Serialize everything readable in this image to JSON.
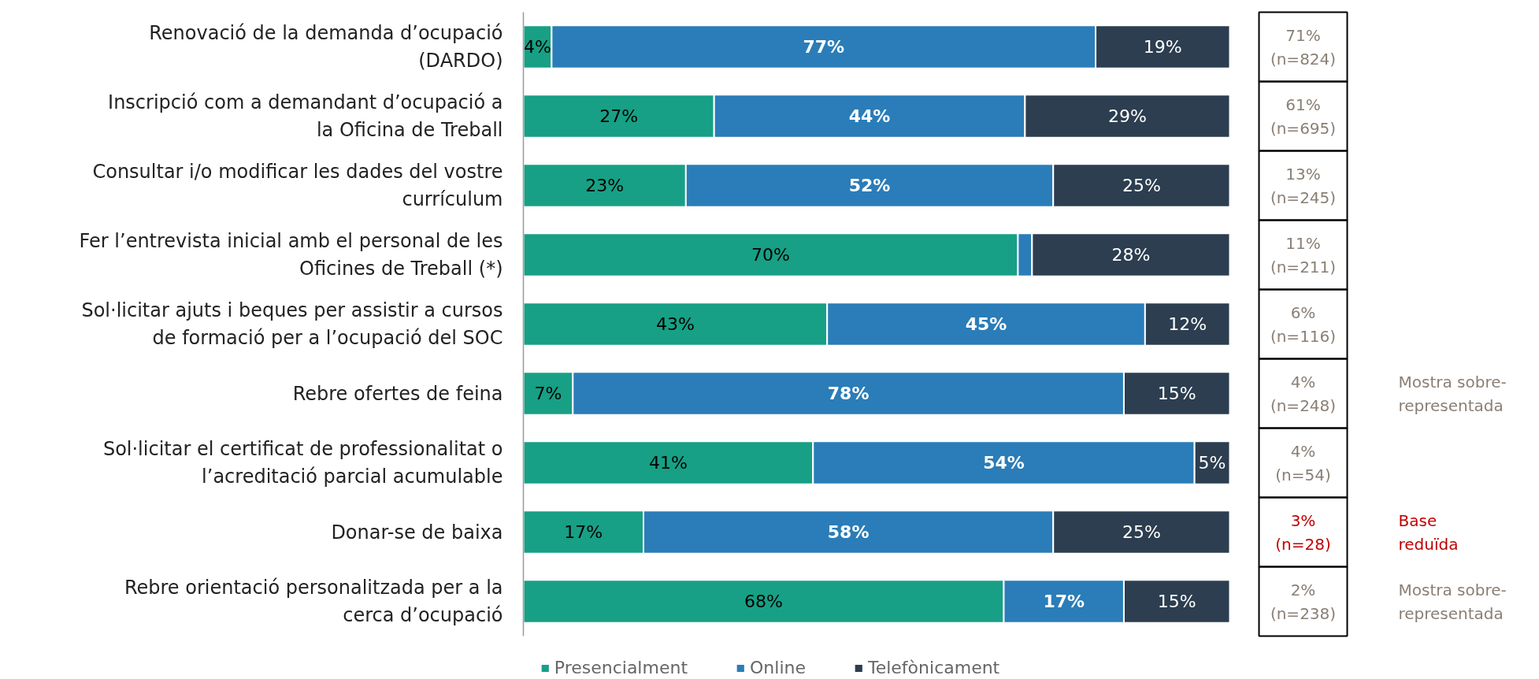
{
  "chart_data": {
    "type": "bar",
    "orientation": "horizontal",
    "stacked": true,
    "legend": "bottom",
    "grid": false,
    "categories": [
      "Renovació de la demanda d’ocupació\n(DARDO)",
      "Inscripció com a demandant d’ocupació a\nla Oficina de Treball",
      "Consultar i/o modificar les dades del vostre\ncurrículum",
      "Fer l’entrevista inicial amb el personal de les\nOficines de Treball (*)",
      "Sol·licitar ajuts i beques per assistir a cursos\nde formació per a l’ocupació del SOC",
      "Rebre ofertes de feina",
      "Sol·licitar el certificat de professionalitat o\nl’acreditació parcial acumulable",
      "Donar-se de baixa",
      "Rebre orientació personalitzada per a la\ncerca d’ocupació"
    ],
    "series": [
      {
        "name": "Presencialment",
        "color": "#17a085",
        "values": [
          4,
          27,
          23,
          70,
          43,
          7,
          41,
          17,
          68
        ],
        "value_labels": [
          "4%",
          "27%",
          "23%",
          "70%",
          "43%",
          "7%",
          "41%",
          "17%",
          "68%"
        ]
      },
      {
        "name": "Online",
        "color": "#2a7db8",
        "values": [
          77,
          44,
          52,
          2,
          45,
          78,
          54,
          58,
          17
        ],
        "value_labels": [
          "77%",
          "44%",
          "52%",
          null,
          "45%",
          "78%",
          "54%",
          "58%",
          "17%"
        ]
      },
      {
        "name": "Telefònicament",
        "color": "#2c3e50",
        "values": [
          19,
          29,
          25,
          28,
          12,
          15,
          5,
          25,
          15
        ],
        "value_labels": [
          "19%",
          "29%",
          "25%",
          "28%",
          "12%",
          "15%",
          "5%",
          "25%",
          "15%"
        ]
      }
    ],
    "annotations": [
      "71%\n(n=824)",
      "61%\n(n=695)",
      "13%\n(n=245)",
      "11%\n(n=211)",
      "6%\n(n=116)",
      "4%\n(n=248)",
      "4%\n(n=54)",
      "3%\n(n=28)",
      "2%\n(n=238)",
      "Mostra sobre-\nrepresentada",
      "Base\nreduïda",
      "Mostra sobre-\nrepresentada"
    ]
  }
}
